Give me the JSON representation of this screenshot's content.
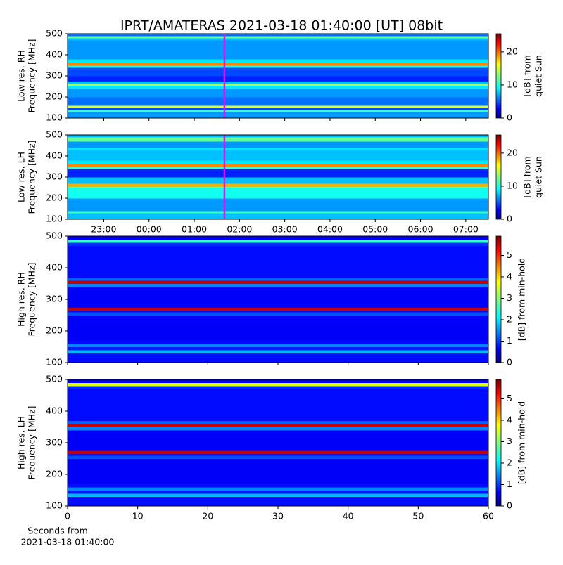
{
  "chart_data": [
    {
      "type": "heatmap",
      "title": "IPRT/AMATERAS 2021-03-18 01:40:00 [UT]   08bit",
      "ylabel": [
        "Low res. RH",
        "Frequency [MHz]"
      ],
      "xlim": [
        22.2,
        31.5
      ],
      "ylim": [
        100,
        500
      ],
      "yticks": [
        100,
        200,
        300,
        400,
        500
      ],
      "y_bins": [
        100,
        130,
        140,
        150,
        160,
        200,
        240,
        255,
        265,
        275,
        300,
        340,
        350,
        365,
        380,
        470,
        480,
        490,
        500
      ],
      "values": [
        7,
        11,
        5,
        15,
        6,
        7,
        9,
        14,
        8,
        4,
        5,
        10,
        19,
        9,
        7,
        8,
        12,
        6
      ],
      "clim": [
        0,
        25.5
      ],
      "cticks": [
        0,
        10,
        20
      ],
      "clabel": [
        "[dB] from",
        "quiet Sun"
      ],
      "marker_x": 25.667,
      "marker_color": "#ff00ff"
    },
    {
      "type": "heatmap",
      "ylabel": [
        "Low res. LH",
        "Frequency [MHz]"
      ],
      "xlim": [
        22.2,
        31.5
      ],
      "xticks": [
        {
          "value": 23,
          "label": "23:00"
        },
        {
          "value": 24,
          "label": "00:00"
        },
        {
          "value": 25,
          "label": "01:00"
        },
        {
          "value": 26,
          "label": "02:00"
        },
        {
          "value": 27,
          "label": "03:00"
        },
        {
          "value": 28,
          "label": "04:00"
        },
        {
          "value": 29,
          "label": "05:00"
        },
        {
          "value": 30,
          "label": "06:00"
        },
        {
          "value": 31,
          "label": "07:00"
        }
      ],
      "ylim": [
        100,
        500
      ],
      "yticks": [
        100,
        200,
        300,
        400,
        500
      ],
      "y_bins": [
        100,
        130,
        140,
        200,
        250,
        255,
        270,
        300,
        340,
        350,
        365,
        380,
        430,
        440,
        470,
        490,
        500
      ],
      "values": [
        8,
        11,
        7,
        10,
        12,
        18,
        8,
        4,
        11,
        19,
        9,
        8,
        9,
        7,
        12,
        8
      ],
      "clim": [
        0,
        25.5
      ],
      "cticks": [
        0,
        10,
        20
      ],
      "clabel": [
        "[dB] from",
        "quiet Sun"
      ],
      "marker_x": 25.667,
      "marker_color": "#ff00ff"
    },
    {
      "type": "heatmap",
      "ylabel": [
        "High res. RH",
        "Frequency [MHz]"
      ],
      "xlim": [
        0,
        60
      ],
      "ylim": [
        100,
        500
      ],
      "yticks": [
        100,
        200,
        300,
        400,
        500
      ],
      "y_bins": [
        100,
        130,
        140,
        150,
        160,
        170,
        250,
        260,
        265,
        275,
        340,
        350,
        360,
        370,
        470,
        480,
        490,
        500
      ],
      "values": [
        0.8,
        1.8,
        0.9,
        1.5,
        0.8,
        0.7,
        1.2,
        0.8,
        5.5,
        0.7,
        1.5,
        5.5,
        1.3,
        0.8,
        1.0,
        2.5,
        0.7
      ],
      "clim": [
        0,
        5.9
      ],
      "cticks": [
        0,
        1,
        2,
        3,
        4,
        5
      ],
      "clabel": [
        "[dB] from min-hold"
      ]
    },
    {
      "type": "heatmap",
      "ylabel": [
        "High res. LH",
        "Frequency [MHz]"
      ],
      "xlabel": [
        "Seconds from",
        "2021-03-18 01:40:00"
      ],
      "xlim": [
        0,
        60
      ],
      "xticks": [
        0,
        10,
        20,
        30,
        40,
        50,
        60
      ],
      "ylim": [
        100,
        500
      ],
      "yticks": [
        100,
        200,
        300,
        400,
        500
      ],
      "y_bins": [
        100,
        130,
        140,
        150,
        160,
        170,
        250,
        260,
        265,
        275,
        340,
        350,
        360,
        370,
        470,
        480,
        490,
        500
      ],
      "values": [
        0.8,
        1.8,
        0.9,
        1.5,
        0.8,
        0.7,
        1.2,
        0.8,
        5.5,
        0.7,
        1.5,
        5.5,
        1.3,
        0.8,
        1.0,
        3.5,
        0.7
      ],
      "clim": [
        0,
        5.9
      ],
      "cticks": [
        0,
        1,
        2,
        3,
        4,
        5
      ],
      "clabel": [
        "[dB] from min-hold"
      ]
    }
  ]
}
